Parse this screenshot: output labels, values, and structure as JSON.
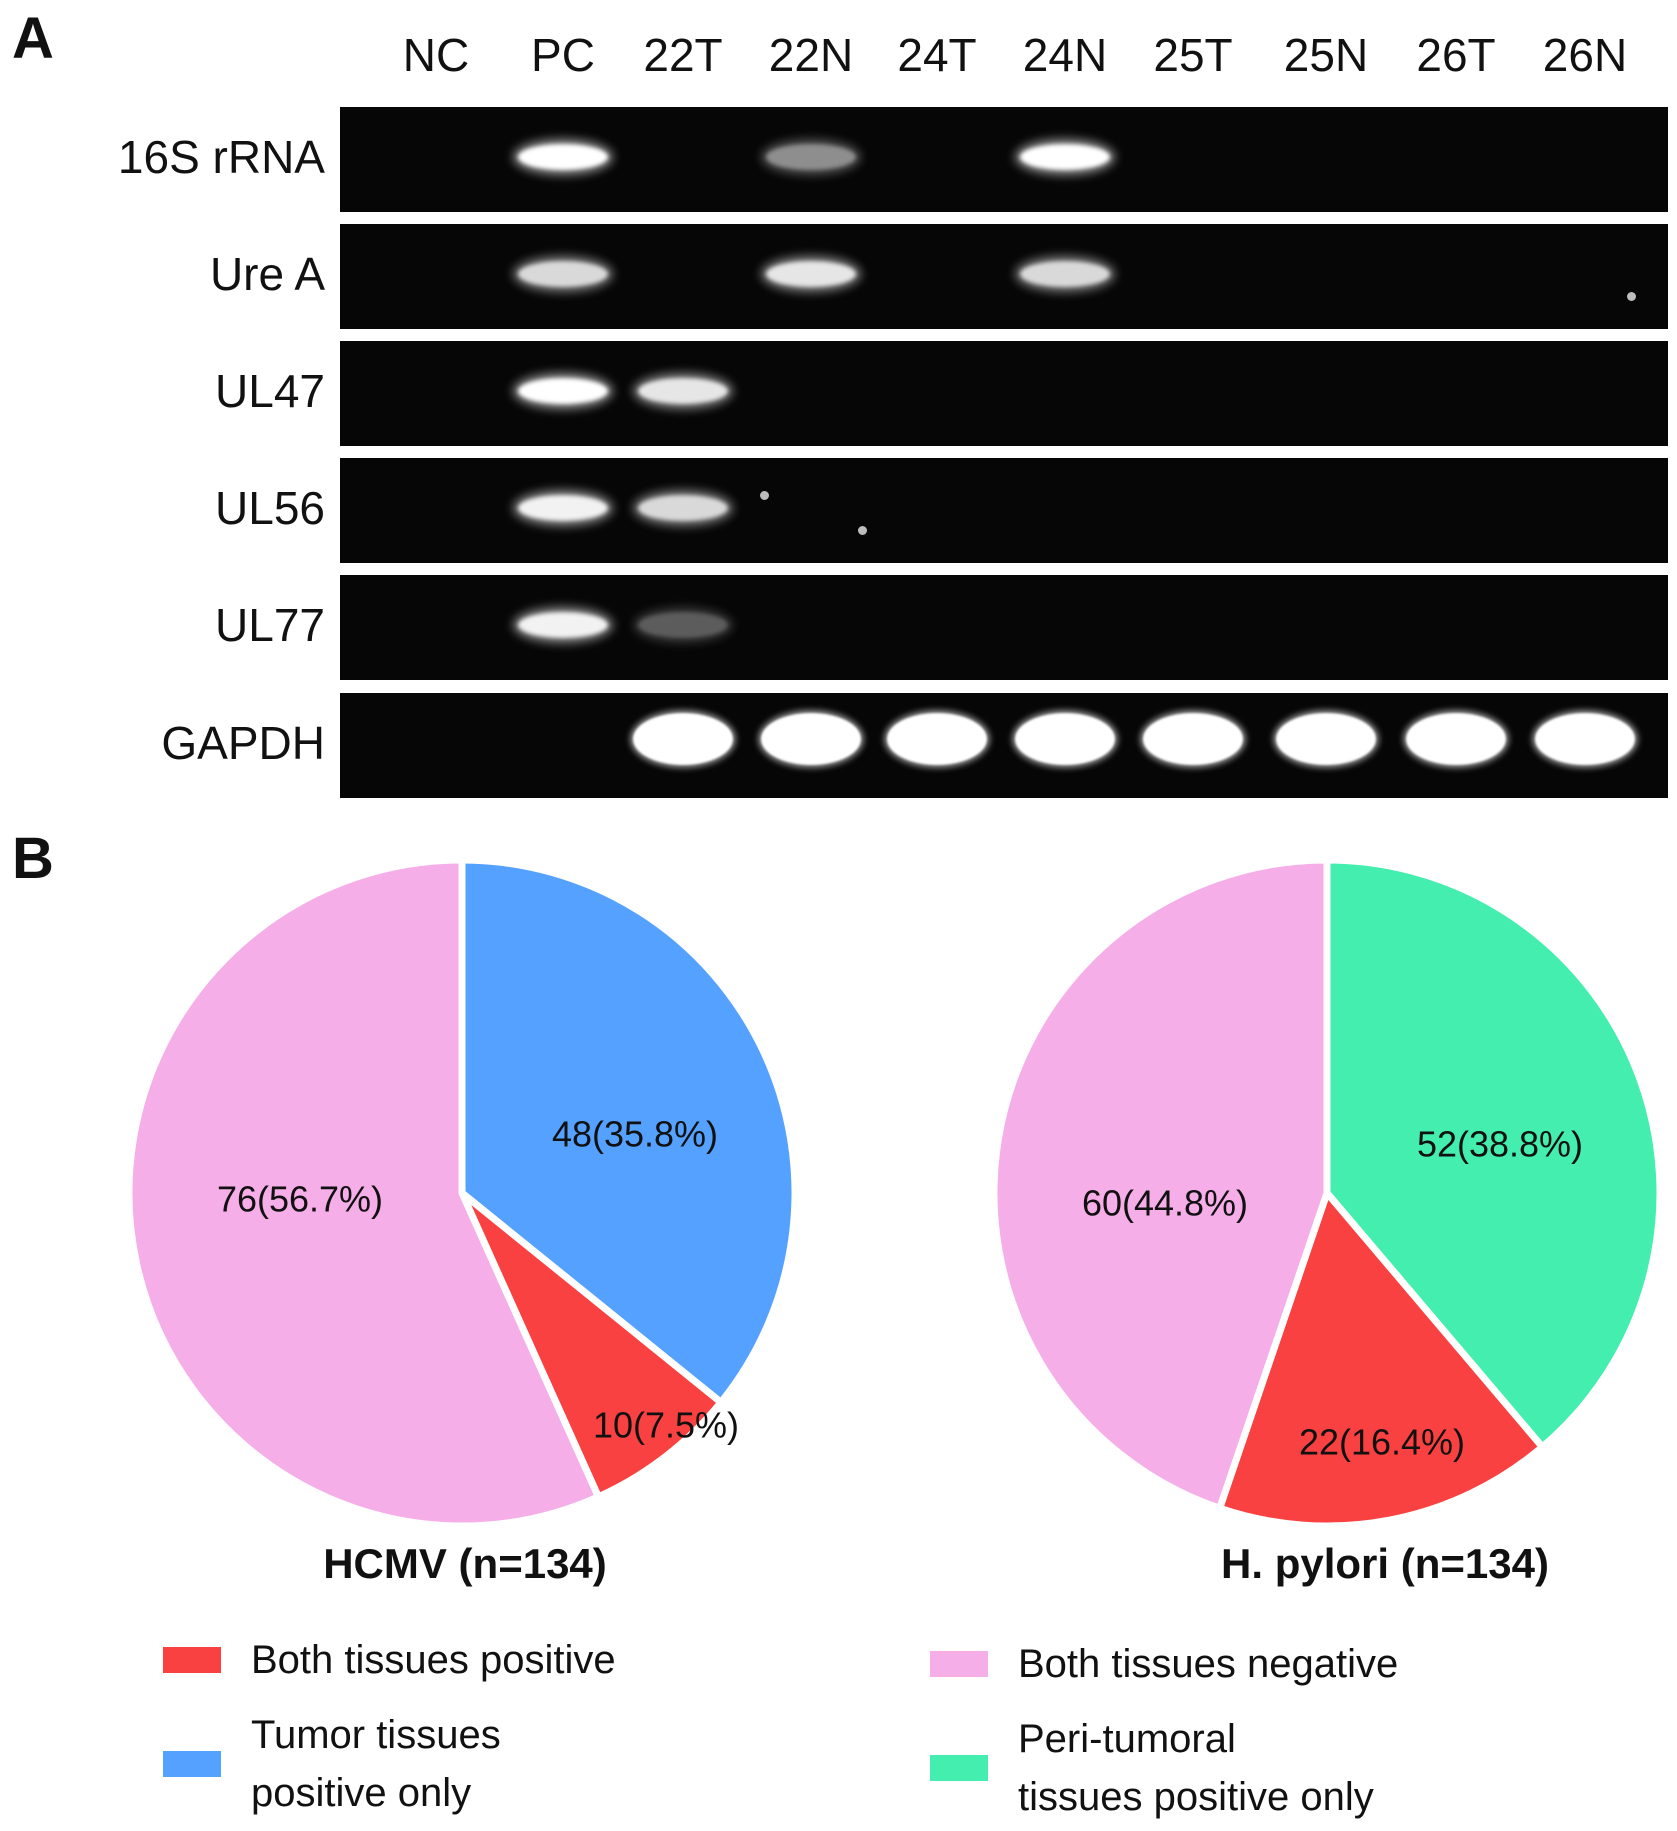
{
  "panel_a": {
    "letter": "A",
    "lanes": [
      "NC",
      "PC",
      "22T",
      "22N",
      "24T",
      "24N",
      "25T",
      "25N",
      "26T",
      "26N"
    ],
    "rows": [
      {
        "label": "16S rRNA",
        "bands": [
          0,
          1.0,
          0,
          0.55,
          0,
          1.0,
          0,
          0,
          0,
          0
        ]
      },
      {
        "label": "Ure A",
        "bands": [
          0,
          0.85,
          0,
          0.9,
          0,
          0.85,
          0,
          0,
          0,
          0
        ]
      },
      {
        "label": "UL47",
        "bands": [
          0,
          1.0,
          0.9,
          0,
          0,
          0,
          0,
          0,
          0,
          0
        ]
      },
      {
        "label": "UL56",
        "bands": [
          0,
          0.95,
          0.85,
          0,
          0,
          0,
          0,
          0,
          0,
          0
        ]
      },
      {
        "label": "UL77",
        "bands": [
          0,
          0.95,
          0.35,
          0,
          0,
          0,
          0,
          0,
          0,
          0
        ]
      },
      {
        "label": "GAPDH",
        "bands": [
          0,
          0,
          1.0,
          1.0,
          1.0,
          1.0,
          1.0,
          1.0,
          1.0,
          1.0
        ]
      }
    ]
  },
  "panel_b": {
    "letter": "B"
  },
  "legend": [
    {
      "label": "Both tissues positive",
      "color": "#f94141"
    },
    {
      "label": "Tumor tissues\npositive only",
      "color": "#55a1ff"
    },
    {
      "label": "Both tissues negative",
      "color": "#f5aee8"
    },
    {
      "label": "Peri-tumoral\ntissues positive only",
      "color": "#44eeae"
    }
  ],
  "chart_data": [
    {
      "type": "pie",
      "title": "HCMV (n=134)",
      "slices": [
        {
          "category": "Tumor tissues positive only",
          "value": 48,
          "percent": 35.8,
          "label": "48(35.8%)",
          "color": "#55a1ff"
        },
        {
          "category": "Both tissues positive",
          "value": 10,
          "percent": 7.5,
          "label": "10(7.5%)",
          "color": "#f94141"
        },
        {
          "category": "Both tissues negative",
          "value": 76,
          "percent": 56.7,
          "label": "76(56.7%)",
          "color": "#f5aee8"
        }
      ]
    },
    {
      "type": "pie",
      "title": "H. pylori (n=134)",
      "slices": [
        {
          "category": "Peri-tumoral tissues positive only",
          "value": 52,
          "percent": 38.8,
          "label": "52(38.8%)",
          "color": "#44eeae"
        },
        {
          "category": "Both tissues positive",
          "value": 22,
          "percent": 16.4,
          "label": "22(16.4%)",
          "color": "#f94141"
        },
        {
          "category": "Both tissues negative",
          "value": 60,
          "percent": 44.8,
          "label": "60(44.8%)",
          "color": "#f5aee8"
        }
      ]
    }
  ]
}
